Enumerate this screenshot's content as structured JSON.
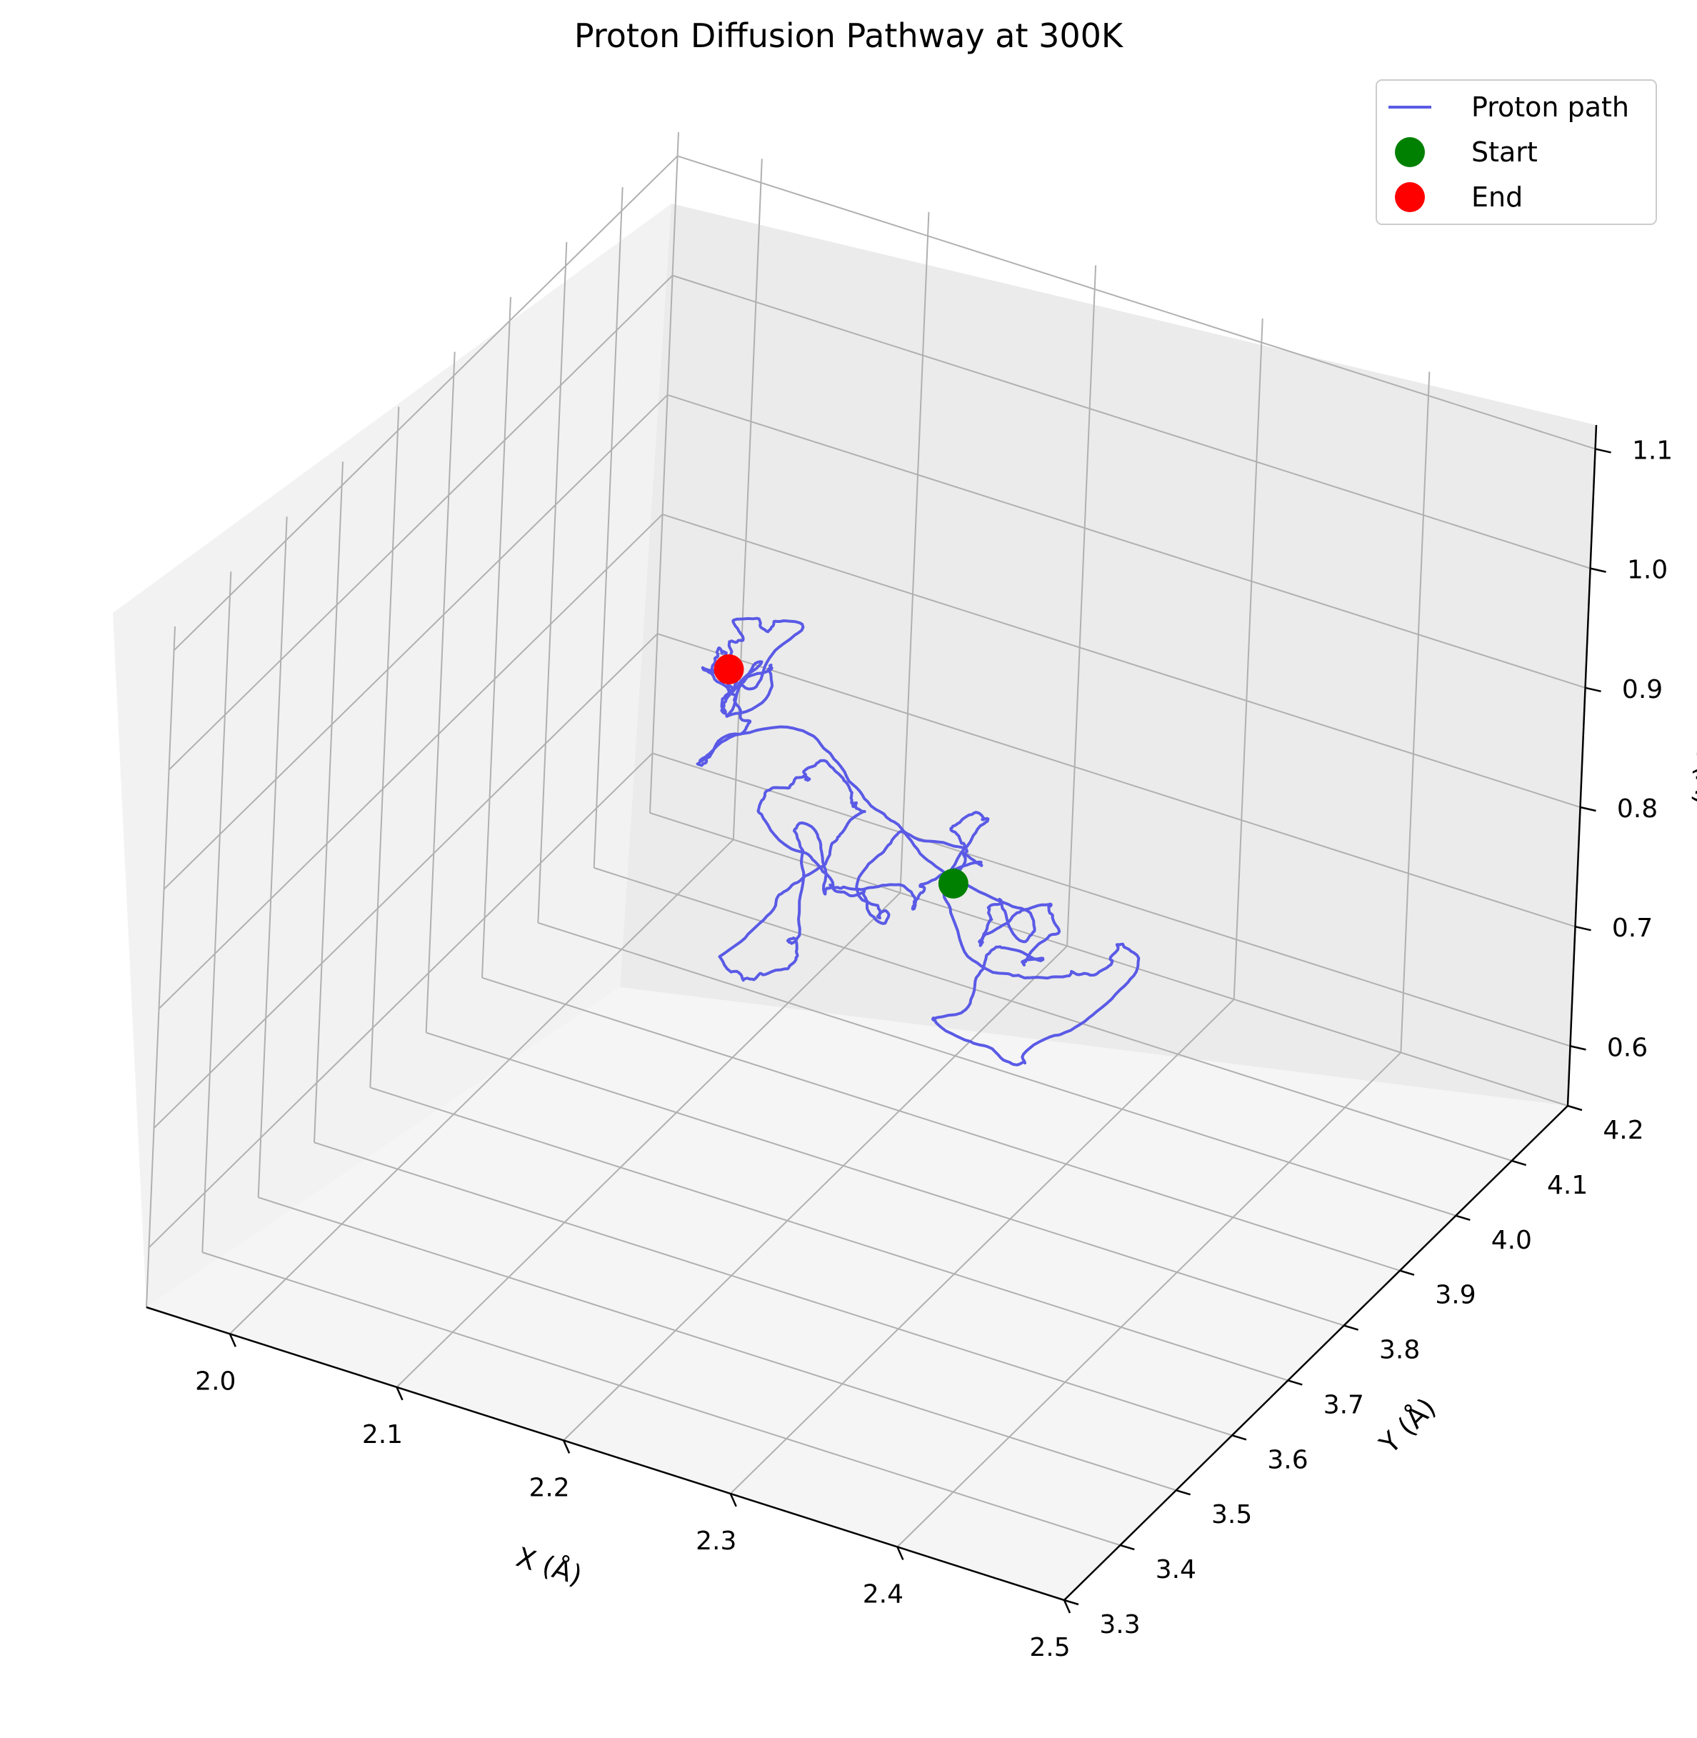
{
  "chart_data": {
    "type": "line3d",
    "title": "Proton Diffusion Pathway at 300K",
    "xlabel": "X (Å)",
    "ylabel": "Y (Å)",
    "zlabel": "Z (Å)",
    "xlim": [
      1.95,
      2.5
    ],
    "ylim": [
      3.3,
      4.2
    ],
    "zlim": [
      0.55,
      1.12
    ],
    "grid": true,
    "legend_position": "top-right",
    "x_ticks": [
      "2.0",
      "2.1",
      "2.2",
      "2.3",
      "2.4",
      "2.5"
    ],
    "y_ticks": [
      "3.3",
      "3.4",
      "3.5",
      "3.6",
      "3.7",
      "3.8",
      "3.9",
      "4.0",
      "4.1",
      "4.2"
    ],
    "z_ticks": [
      "0.6",
      "0.7",
      "0.8",
      "0.9",
      "1.0",
      "1.1"
    ],
    "series": [
      {
        "name": "Proton path",
        "kind": "line",
        "color": "#5a5ae6"
      },
      {
        "name": "Start",
        "kind": "marker",
        "color": "#008000",
        "point": {
          "x": 2.22,
          "y": 3.92,
          "z": 0.74
        }
      },
      {
        "name": "End",
        "kind": "marker",
        "color": "#ff0000",
        "point": {
          "x": 2.12,
          "y": 3.8,
          "z": 0.93
        }
      }
    ]
  }
}
